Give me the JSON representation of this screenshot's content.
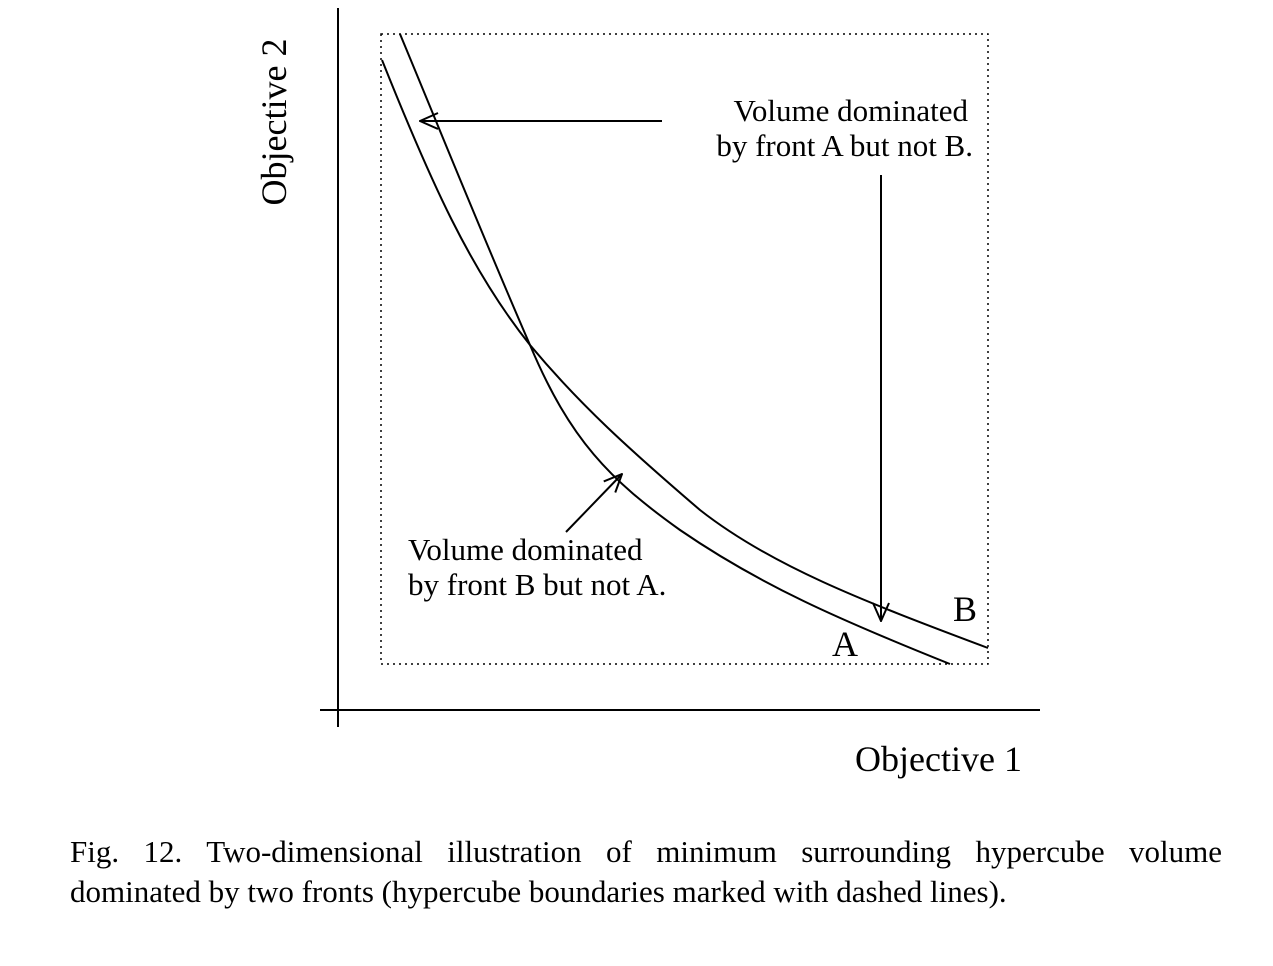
{
  "figure": {
    "y_axis_label": "Objective 2",
    "x_axis_label": "Objective 1",
    "annotation_a_not_b": [
      "Volume dominated",
      "by front A but not B."
    ],
    "annotation_b_not_a": [
      "Volume dominated",
      "by front B but not A."
    ],
    "front_a_label": "A",
    "front_b_label": "B"
  },
  "caption": {
    "label": "Fig. 12.",
    "text": "Two-dimensional illustration of minimum surrounding hypercube volume dominated by two fronts (hypercube boundaries marked with dashed lines)."
  }
}
